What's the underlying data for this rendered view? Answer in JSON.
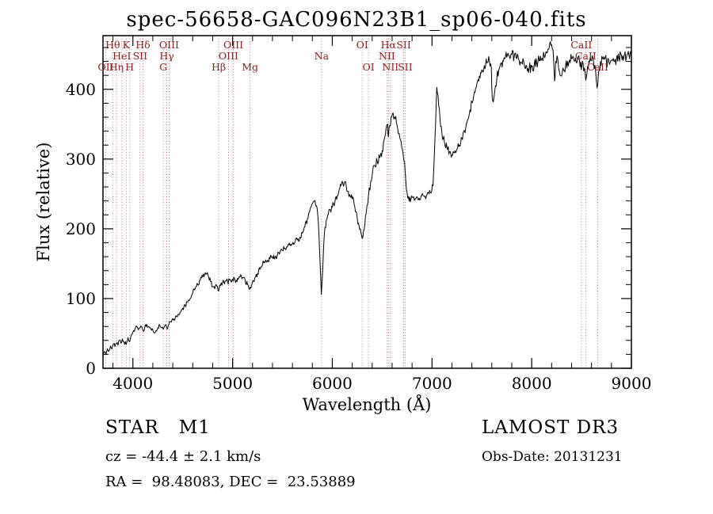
{
  "title": "spec-56658-GAC096N23B1_sp06-040.fits",
  "annotations": {
    "class_label": "STAR   M1",
    "survey": "LAMOST DR3",
    "cz": "cz = -44.4 ± 2.1 km/s",
    "obs_date": "Obs-Date: 20131231",
    "radec": "RA =  98.48083, DEC =  23.53889"
  },
  "chart_data": {
    "type": "line",
    "title": "spec-56658-GAC096N23B1_sp06-040.fits",
    "xlabel": "Wavelength (Å)",
    "ylabel": "Flux (relative)",
    "xlim": [
      3700,
      9000
    ],
    "ylim": [
      0,
      477
    ],
    "xticks": [
      4000,
      5000,
      6000,
      7000,
      8000,
      9000
    ],
    "yticks": [
      0,
      100,
      200,
      300,
      400
    ],
    "grid": false,
    "legend": "none",
    "noise_amplitude": 5,
    "colors": {
      "line": "#000000",
      "marker_line": "#c46a6a",
      "marker_label": "#8b2020"
    },
    "spectral_lines": [
      {
        "label": "OII",
        "wavelength": 3727,
        "row": 3
      },
      {
        "label": "Hθ",
        "wavelength": 3798,
        "row": 1
      },
      {
        "label": "Hη",
        "wavelength": 3835,
        "row": 3
      },
      {
        "label": "HeI",
        "wavelength": 3889,
        "row": 2
      },
      {
        "label": "K",
        "wavelength": 3933,
        "row": 1
      },
      {
        "label": "H",
        "wavelength": 3968,
        "row": 3
      },
      {
        "label": "SII",
        "wavelength": 4072,
        "row": 2
      },
      {
        "label": "Hδ",
        "wavelength": 4101,
        "row": 1
      },
      {
        "label": "G",
        "wavelength": 4305,
        "row": 3
      },
      {
        "label": "Hγ",
        "wavelength": 4340,
        "row": 2
      },
      {
        "label": "OIII",
        "wavelength": 4363,
        "row": 1
      },
      {
        "label": "Hβ",
        "wavelength": 4861,
        "row": 3
      },
      {
        "label": "OIII",
        "wavelength": 4959,
        "row": 2
      },
      {
        "label": "OIII",
        "wavelength": 5007,
        "row": 1
      },
      {
        "label": "Mg",
        "wavelength": 5175,
        "row": 3
      },
      {
        "label": "Na",
        "wavelength": 5892,
        "row": 2
      },
      {
        "label": "OI",
        "wavelength": 6300,
        "row": 1
      },
      {
        "label": "OI",
        "wavelength": 6363,
        "row": 3
      },
      {
        "label": "NII",
        "wavelength": 6548,
        "row": 2
      },
      {
        "label": "Hα",
        "wavelength": 6563,
        "row": 1
      },
      {
        "label": "NII",
        "wavelength": 6583,
        "row": 3
      },
      {
        "label": "SII",
        "wavelength": 6716,
        "row": 1
      },
      {
        "label": "SII",
        "wavelength": 6731,
        "row": 3
      },
      {
        "label": "CaII",
        "wavelength": 8498,
        "row": 1
      },
      {
        "label": "CaII",
        "wavelength": 8542,
        "row": 2
      },
      {
        "label": "CaII",
        "wavelength": 8662,
        "row": 3
      }
    ],
    "series": [
      {
        "name": "spectrum",
        "points": [
          [
            3700,
            16
          ],
          [
            3715,
            24
          ],
          [
            3730,
            20
          ],
          [
            3745,
            28
          ],
          [
            3760,
            25
          ],
          [
            3775,
            32
          ],
          [
            3790,
            28
          ],
          [
            3805,
            35
          ],
          [
            3820,
            31
          ],
          [
            3835,
            36
          ],
          [
            3850,
            33
          ],
          [
            3865,
            40
          ],
          [
            3880,
            36
          ],
          [
            3895,
            42
          ],
          [
            3910,
            38
          ],
          [
            3933,
            34
          ],
          [
            3950,
            44
          ],
          [
            3968,
            38
          ],
          [
            3985,
            48
          ],
          [
            4000,
            52
          ],
          [
            4020,
            56
          ],
          [
            4040,
            60
          ],
          [
            4060,
            57
          ],
          [
            4080,
            61
          ],
          [
            4101,
            54
          ],
          [
            4120,
            60
          ],
          [
            4140,
            63
          ],
          [
            4160,
            60
          ],
          [
            4180,
            57
          ],
          [
            4200,
            55
          ],
          [
            4226,
            52
          ],
          [
            4250,
            58
          ],
          [
            4270,
            61
          ],
          [
            4290,
            58
          ],
          [
            4305,
            56
          ],
          [
            4320,
            61
          ],
          [
            4340,
            57
          ],
          [
            4360,
            63
          ],
          [
            4380,
            67
          ],
          [
            4400,
            71
          ],
          [
            4420,
            69
          ],
          [
            4440,
            74
          ],
          [
            4460,
            77
          ],
          [
            4480,
            81
          ],
          [
            4500,
            86
          ],
          [
            4525,
            90
          ],
          [
            4550,
            95
          ],
          [
            4575,
            100
          ],
          [
            4600,
            108
          ],
          [
            4625,
            114
          ],
          [
            4650,
            120
          ],
          [
            4675,
            126
          ],
          [
            4700,
            131
          ],
          [
            4720,
            134
          ],
          [
            4740,
            135
          ],
          [
            4760,
            131
          ],
          [
            4780,
            124
          ],
          [
            4800,
            117
          ],
          [
            4820,
            114
          ],
          [
            4840,
            118
          ],
          [
            4861,
            111
          ],
          [
            4880,
            119
          ],
          [
            4900,
            123
          ],
          [
            4925,
            125
          ],
          [
            4950,
            124
          ],
          [
            4975,
            127
          ],
          [
            5000,
            128
          ],
          [
            5025,
            126
          ],
          [
            5050,
            129
          ],
          [
            5075,
            131
          ],
          [
            5100,
            130
          ],
          [
            5125,
            127
          ],
          [
            5150,
            120
          ],
          [
            5170,
            113
          ],
          [
            5190,
            118
          ],
          [
            5210,
            125
          ],
          [
            5230,
            131
          ],
          [
            5250,
            136
          ],
          [
            5275,
            142
          ],
          [
            5300,
            149
          ],
          [
            5325,
            152
          ],
          [
            5350,
            155
          ],
          [
            5375,
            157
          ],
          [
            5400,
            160
          ],
          [
            5425,
            159
          ],
          [
            5450,
            163
          ],
          [
            5475,
            166
          ],
          [
            5500,
            169
          ],
          [
            5525,
            172
          ],
          [
            5550,
            174
          ],
          [
            5575,
            176
          ],
          [
            5600,
            178
          ],
          [
            5625,
            181
          ],
          [
            5650,
            184
          ],
          [
            5675,
            188
          ],
          [
            5700,
            194
          ],
          [
            5725,
            203
          ],
          [
            5750,
            214
          ],
          [
            5775,
            226
          ],
          [
            5800,
            236
          ],
          [
            5820,
            240
          ],
          [
            5840,
            233
          ],
          [
            5860,
            210
          ],
          [
            5875,
            160
          ],
          [
            5890,
            106
          ],
          [
            5905,
            145
          ],
          [
            5920,
            192
          ],
          [
            5940,
            213
          ],
          [
            5960,
            221
          ],
          [
            5980,
            227
          ],
          [
            6000,
            231
          ],
          [
            6025,
            237
          ],
          [
            6050,
            247
          ],
          [
            6075,
            258
          ],
          [
            6100,
            268
          ],
          [
            6120,
            266
          ],
          [
            6140,
            261
          ],
          [
            6160,
            254
          ],
          [
            6180,
            247
          ],
          [
            6200,
            243
          ],
          [
            6225,
            232
          ],
          [
            6250,
            216
          ],
          [
            6275,
            199
          ],
          [
            6300,
            186
          ],
          [
            6320,
            199
          ],
          [
            6340,
            222
          ],
          [
            6363,
            247
          ],
          [
            6385,
            268
          ],
          [
            6405,
            283
          ],
          [
            6425,
            291
          ],
          [
            6450,
            297
          ],
          [
            6475,
            302
          ],
          [
            6500,
            312
          ],
          [
            6520,
            328
          ],
          [
            6540,
            344
          ],
          [
            6555,
            350
          ],
          [
            6563,
            332
          ],
          [
            6575,
            348
          ],
          [
            6590,
            360
          ],
          [
            6610,
            366
          ],
          [
            6630,
            358
          ],
          [
            6650,
            348
          ],
          [
            6670,
            337
          ],
          [
            6690,
            325
          ],
          [
            6710,
            308
          ],
          [
            6731,
            283
          ],
          [
            6750,
            252
          ],
          [
            6770,
            240
          ],
          [
            6790,
            243
          ],
          [
            6810,
            245
          ],
          [
            6830,
            243
          ],
          [
            6850,
            246
          ],
          [
            6870,
            244
          ],
          [
            6890,
            247
          ],
          [
            6910,
            248
          ],
          [
            6930,
            247
          ],
          [
            6950,
            249
          ],
          [
            6970,
            250
          ],
          [
            6990,
            251
          ],
          [
            7010,
            262
          ],
          [
            7030,
            330
          ],
          [
            7048,
            403
          ],
          [
            7060,
            392
          ],
          [
            7080,
            358
          ],
          [
            7100,
            336
          ],
          [
            7125,
            324
          ],
          [
            7150,
            316
          ],
          [
            7175,
            310
          ],
          [
            7200,
            306
          ],
          [
            7225,
            309
          ],
          [
            7250,
            314
          ],
          [
            7275,
            320
          ],
          [
            7300,
            330
          ],
          [
            7325,
            341
          ],
          [
            7350,
            352
          ],
          [
            7375,
            365
          ],
          [
            7400,
            382
          ],
          [
            7425,
            396
          ],
          [
            7450,
            408
          ],
          [
            7475,
            419
          ],
          [
            7500,
            428
          ],
          [
            7525,
            434
          ],
          [
            7550,
            438
          ],
          [
            7575,
            441
          ],
          [
            7595,
            432
          ],
          [
            7605,
            388
          ],
          [
            7615,
            382
          ],
          [
            7630,
            398
          ],
          [
            7650,
            415
          ],
          [
            7670,
            428
          ],
          [
            7690,
            437
          ],
          [
            7710,
            441
          ],
          [
            7730,
            444
          ],
          [
            7750,
            446
          ],
          [
            7775,
            448
          ],
          [
            7800,
            450
          ],
          [
            7825,
            447
          ],
          [
            7850,
            444
          ],
          [
            7875,
            441
          ],
          [
            7900,
            438
          ],
          [
            7925,
            436
          ],
          [
            7950,
            433
          ],
          [
            7975,
            431
          ],
          [
            8000,
            432
          ],
          [
            8025,
            435
          ],
          [
            8050,
            438
          ],
          [
            8075,
            441
          ],
          [
            8100,
            444
          ],
          [
            8125,
            448
          ],
          [
            8150,
            453
          ],
          [
            8175,
            459
          ],
          [
            8200,
            464
          ],
          [
            8215,
            456
          ],
          [
            8230,
            412
          ],
          [
            8240,
            440
          ],
          [
            8255,
            448
          ],
          [
            8270,
            430
          ],
          [
            8285,
            420
          ],
          [
            8300,
            419
          ],
          [
            8320,
            427
          ],
          [
            8340,
            434
          ],
          [
            8360,
            440
          ],
          [
            8380,
            442
          ],
          [
            8400,
            444
          ],
          [
            8420,
            446
          ],
          [
            8440,
            445
          ],
          [
            8460,
            443
          ],
          [
            8480,
            440
          ],
          [
            8498,
            428
          ],
          [
            8515,
            437
          ],
          [
            8542,
            413
          ],
          [
            8560,
            433
          ],
          [
            8580,
            439
          ],
          [
            8600,
            441
          ],
          [
            8620,
            439
          ],
          [
            8640,
            428
          ],
          [
            8655,
            402
          ],
          [
            8670,
            425
          ],
          [
            8690,
            440
          ],
          [
            8710,
            445
          ],
          [
            8730,
            443
          ],
          [
            8750,
            440
          ],
          [
            8775,
            439
          ],
          [
            8800,
            441
          ],
          [
            8825,
            440
          ],
          [
            8850,
            443
          ],
          [
            8875,
            445
          ],
          [
            8900,
            449
          ],
          [
            8925,
            447
          ],
          [
            8950,
            446
          ],
          [
            8975,
            449
          ],
          [
            9000,
            446
          ]
        ]
      }
    ]
  }
}
